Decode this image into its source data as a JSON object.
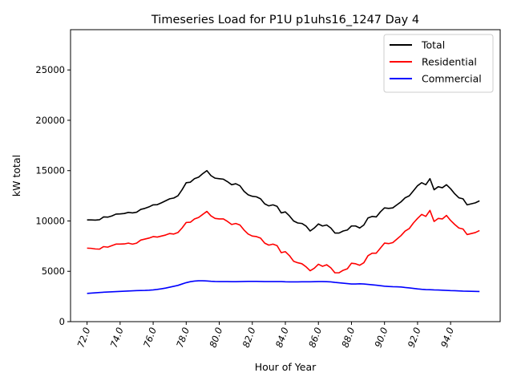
{
  "chart_data": {
    "type": "line",
    "title": "Timeseries Load for P1U p1uhs16_1247  Day 4",
    "xlabel": "Hour of Year",
    "ylabel": "kW total",
    "xlim": [
      71.0,
      97.0
    ],
    "ylim": [
      0,
      29000
    ],
    "xticks": [
      72,
      74,
      76,
      78,
      80,
      82,
      84,
      86,
      88,
      90,
      92,
      94
    ],
    "xtick_labels": [
      "72.0",
      "74.0",
      "76.0",
      "78.0",
      "80.0",
      "82.0",
      "84.0",
      "86.0",
      "88.0",
      "90.0",
      "92.0",
      "94.0"
    ],
    "yticks": [
      0,
      5000,
      10000,
      15000,
      20000,
      25000
    ],
    "ytick_labels": [
      "0",
      "5000",
      "10000",
      "15000",
      "20000",
      "25000"
    ],
    "legend_position": "top-right",
    "grid": false,
    "x": [
      72.0,
      72.25,
      72.5,
      72.75,
      73.0,
      73.25,
      73.5,
      73.75,
      74.0,
      74.25,
      74.5,
      74.75,
      75.0,
      75.25,
      75.5,
      75.75,
      76.0,
      76.25,
      76.5,
      76.75,
      77.0,
      77.25,
      77.5,
      77.75,
      78.0,
      78.25,
      78.5,
      78.75,
      79.0,
      79.25,
      79.5,
      79.75,
      80.0,
      80.25,
      80.5,
      80.75,
      81.0,
      81.25,
      81.5,
      81.75,
      82.0,
      82.25,
      82.5,
      82.75,
      83.0,
      83.25,
      83.5,
      83.75,
      84.0,
      84.25,
      84.5,
      84.75,
      85.0,
      85.25,
      85.5,
      85.75,
      86.0,
      86.25,
      86.5,
      86.75,
      87.0,
      87.25,
      87.5,
      87.75,
      88.0,
      88.25,
      88.5,
      88.75,
      89.0,
      89.25,
      89.5,
      89.75,
      90.0,
      90.25,
      90.5,
      90.75,
      91.0,
      91.25,
      91.5,
      91.75,
      92.0,
      92.25,
      92.5,
      92.75,
      93.0,
      93.25,
      93.5,
      93.75,
      94.0,
      94.25,
      94.5,
      94.75,
      95.0,
      95.25,
      95.5,
      95.75
    ],
    "series": [
      {
        "name": "Total",
        "color": "#000000",
        "values": [
          10100,
          10100,
          10080,
          10120,
          10400,
          10380,
          10500,
          10680,
          10700,
          10740,
          10850,
          10800,
          10870,
          11150,
          11250,
          11400,
          11600,
          11620,
          11800,
          12000,
          12200,
          12280,
          12500,
          13100,
          13800,
          13850,
          14200,
          14350,
          14700,
          15000,
          14500,
          14250,
          14200,
          14150,
          13900,
          13600,
          13700,
          13500,
          12950,
          12600,
          12450,
          12400,
          12200,
          11700,
          11500,
          11600,
          11450,
          10800,
          10900,
          10500,
          10000,
          9800,
          9750,
          9500,
          9000,
          9300,
          9700,
          9500,
          9600,
          9300,
          8800,
          8800,
          9000,
          9100,
          9500,
          9500,
          9300,
          9600,
          10300,
          10450,
          10400,
          10900,
          11300,
          11250,
          11300,
          11600,
          11900,
          12300,
          12500,
          13000,
          13500,
          13800,
          13600,
          14200,
          13100,
          13400,
          13300,
          13600,
          13200,
          12700,
          12300,
          12200,
          11600,
          11700,
          11800,
          12000
        ]
      },
      {
        "name": "Residential",
        "color": "#ff0000",
        "values": [
          7300,
          7280,
          7220,
          7200,
          7450,
          7400,
          7550,
          7700,
          7700,
          7720,
          7800,
          7700,
          7800,
          8100,
          8200,
          8300,
          8450,
          8400,
          8500,
          8600,
          8750,
          8700,
          8850,
          9300,
          9850,
          9870,
          10200,
          10350,
          10650,
          10950,
          10500,
          10250,
          10200,
          10200,
          9950,
          9650,
          9750,
          9600,
          9100,
          8700,
          8500,
          8450,
          8300,
          7800,
          7600,
          7700,
          7550,
          6850,
          6950,
          6550,
          6000,
          5850,
          5750,
          5450,
          5050,
          5300,
          5700,
          5500,
          5650,
          5350,
          4850,
          4850,
          5100,
          5250,
          5800,
          5750,
          5600,
          5850,
          6550,
          6800,
          6800,
          7300,
          7800,
          7750,
          7850,
          8200,
          8550,
          9000,
          9250,
          9800,
          10250,
          10650,
          10450,
          11050,
          9950,
          10250,
          10200,
          10550,
          10050,
          9650,
          9300,
          9200,
          8650,
          8750,
          8850,
          9050
        ]
      },
      {
        "name": "Commercial",
        "color": "#0000ff",
        "values": [
          2800,
          2830,
          2860,
          2890,
          2920,
          2940,
          2960,
          2980,
          3000,
          3020,
          3040,
          3060,
          3080,
          3090,
          3100,
          3120,
          3150,
          3200,
          3260,
          3330,
          3420,
          3510,
          3600,
          3740,
          3870,
          3970,
          4030,
          4060,
          4060,
          4040,
          4010,
          3990,
          3980,
          3980,
          3980,
          3970,
          3970,
          3980,
          3990,
          4000,
          4000,
          4000,
          3990,
          3980,
          3980,
          3980,
          3980,
          3980,
          3960,
          3950,
          3950,
          3950,
          3960,
          3960,
          3960,
          3970,
          3980,
          3980,
          3970,
          3950,
          3900,
          3860,
          3820,
          3780,
          3740,
          3740,
          3760,
          3740,
          3700,
          3660,
          3620,
          3570,
          3520,
          3490,
          3470,
          3460,
          3440,
          3390,
          3350,
          3300,
          3250,
          3210,
          3180,
          3170,
          3150,
          3140,
          3120,
          3100,
          3080,
          3070,
          3050,
          3030,
          3020,
          3010,
          3000,
          2990
        ]
      }
    ]
  }
}
